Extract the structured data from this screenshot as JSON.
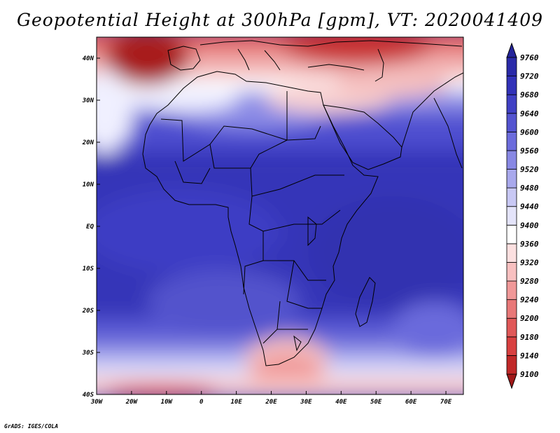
{
  "title": "Geopotential Height at 300hPa [gpm], VT: 2020041409",
  "credit": "GrADS: IGES/COLA",
  "map": {
    "variable": "Geopotential Height",
    "level": "300hPa",
    "units": "gpm",
    "valid_time": "2020041409",
    "lon_range": [
      -30,
      75
    ],
    "lat_range": [
      -40,
      45
    ],
    "lon_ticks": [
      "30W",
      "20W",
      "10W",
      "0",
      "10E",
      "20E",
      "30E",
      "40E",
      "50E",
      "60E",
      "70E"
    ],
    "lat_ticks": [
      "40S",
      "30S",
      "20S",
      "10S",
      "EQ",
      "10N",
      "20N",
      "30N",
      "40N"
    ]
  },
  "colorbar": {
    "levels": [
      "9100",
      "9140",
      "9180",
      "9200",
      "9240",
      "9280",
      "9320",
      "9360",
      "9400",
      "9440",
      "9480",
      "9520",
      "9560",
      "9600",
      "9640",
      "9680",
      "9720",
      "9760"
    ],
    "colors": [
      "#a01818",
      "#c02828",
      "#d84040",
      "#e05858",
      "#e87878",
      "#f09898",
      "#f8c0c0",
      "#fce0e0",
      "#ffffff",
      "#e4e4fa",
      "#c8c8f4",
      "#a8a8ec",
      "#8888e4",
      "#6c6cdc",
      "#5454d0",
      "#4040c4",
      "#3232b8",
      "#2a2aa8",
      "#24249a"
    ]
  }
}
